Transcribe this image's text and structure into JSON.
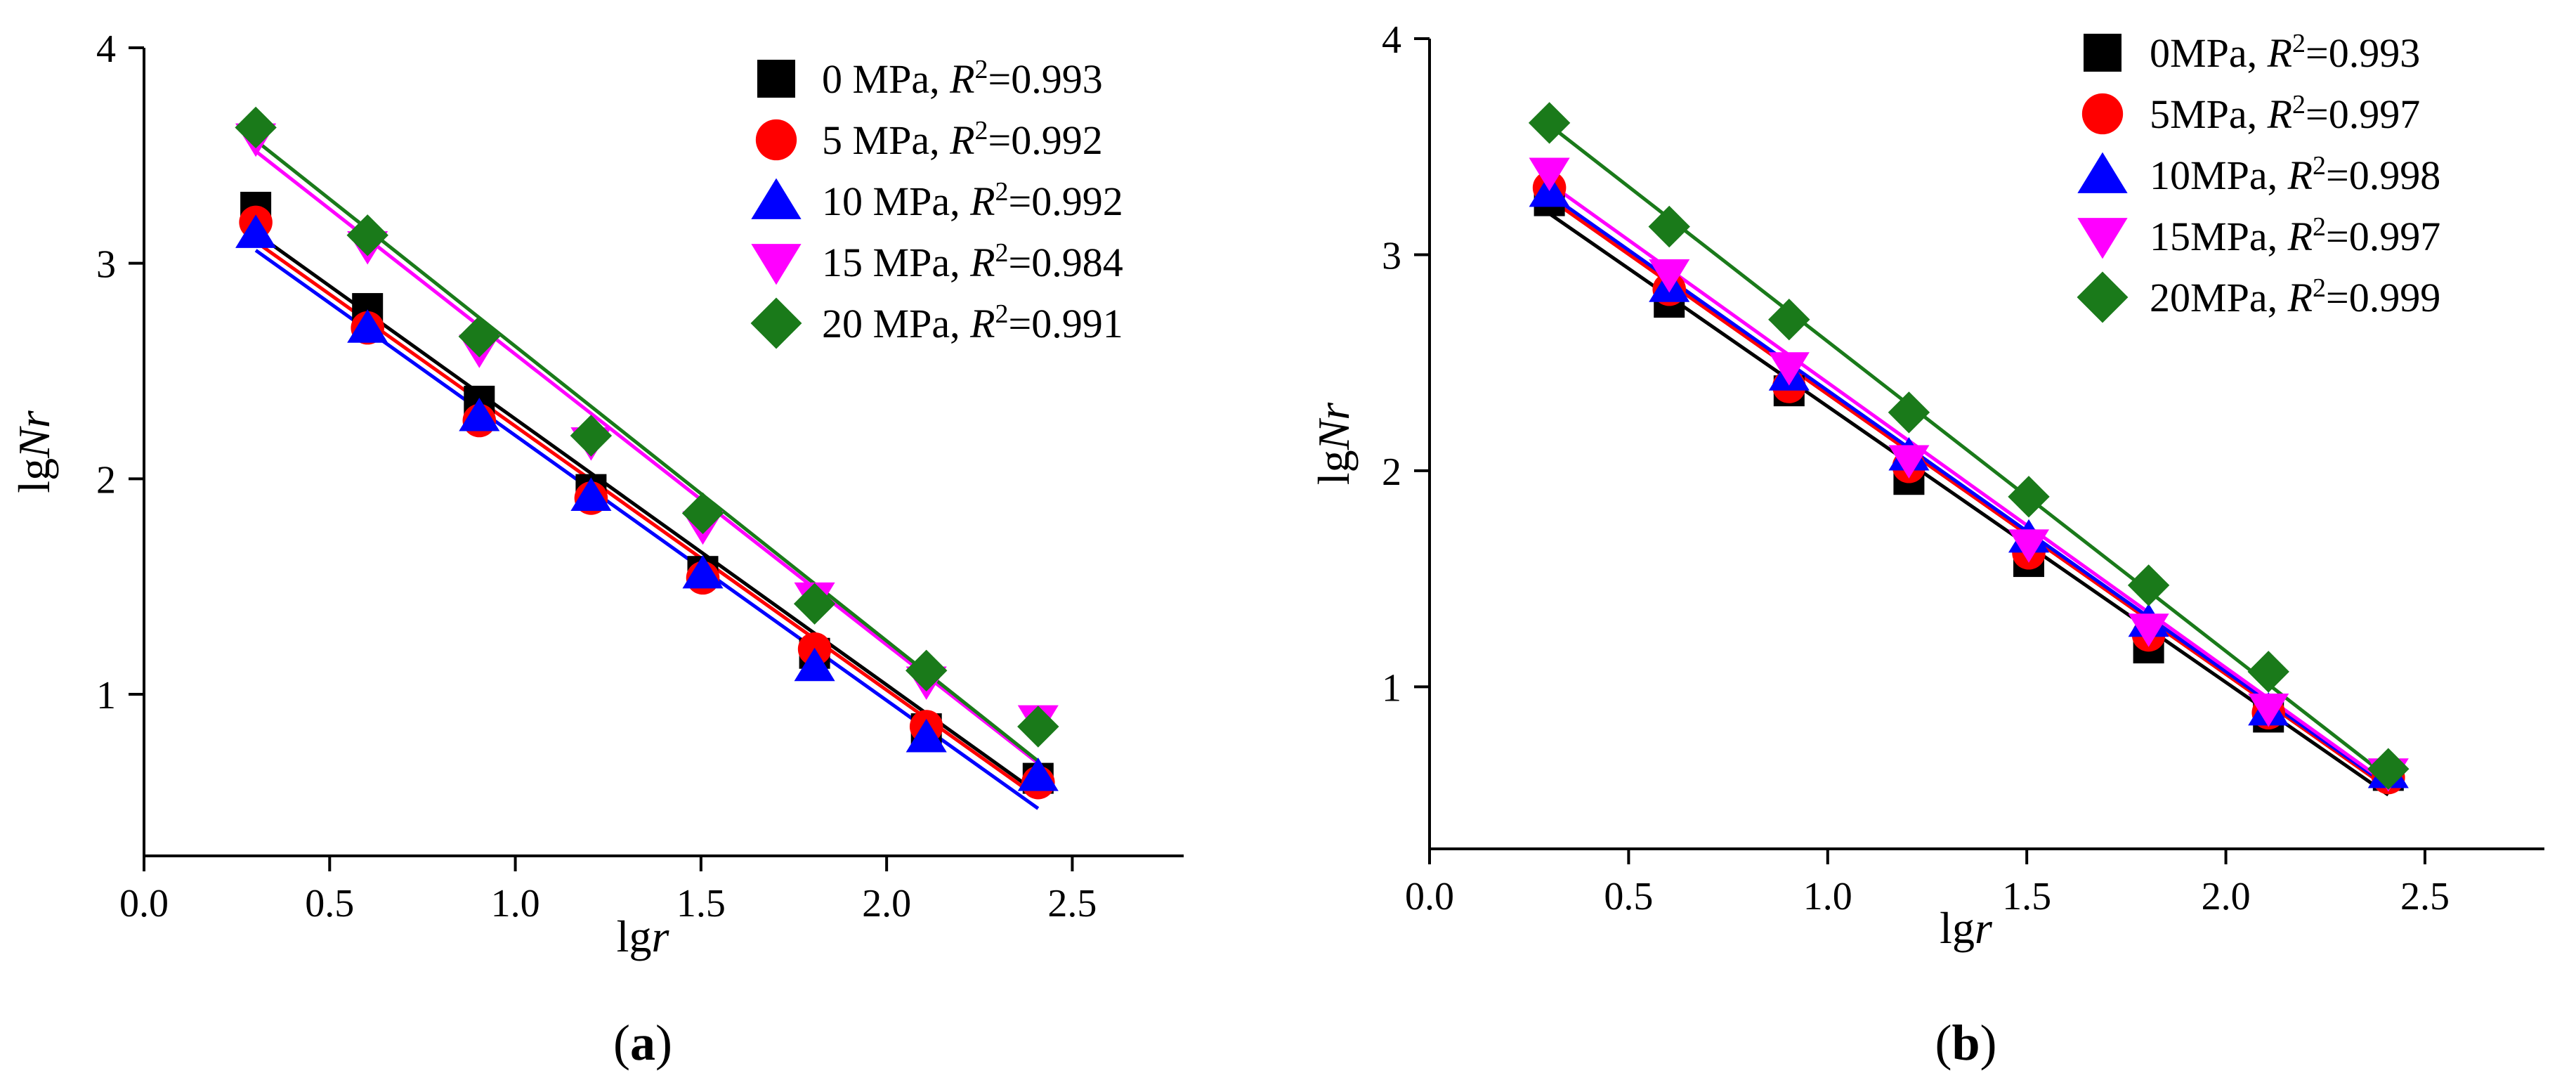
{
  "figure": {
    "panels": [
      "a",
      "b"
    ]
  },
  "chart_data": [
    {
      "id": "a",
      "type": "scatter",
      "panel_label": "a",
      "xlabel": {
        "prefix": "lg",
        "italic": "r"
      },
      "ylabel": {
        "prefix": "lg",
        "italic": "Nr"
      },
      "xlim": [
        0,
        2.8
      ],
      "ylim": [
        0.25,
        4
      ],
      "xticks": [
        0.0,
        0.5,
        1.0,
        1.5,
        2.0,
        2.5
      ],
      "xtick_labels": [
        "0.0",
        "0.5",
        "1.0",
        "1.5",
        "2.0",
        "2.5"
      ],
      "yticks": [
        1,
        2,
        3,
        4
      ],
      "ytick_labels": [
        "1",
        "2",
        "3",
        "4"
      ],
      "legend_position": "top-right",
      "x": [
        0.301,
        0.602,
        0.903,
        1.204,
        1.505,
        1.806,
        2.107,
        2.408
      ],
      "series": [
        {
          "name": "0 MPa",
          "prefix": "0 MPa, ",
          "r2": "=0.993",
          "marker": "square",
          "color": "#000000",
          "values": [
            3.26,
            2.79,
            2.36,
            1.95,
            1.57,
            1.19,
            0.84,
            0.61
          ],
          "fit": [
            3.14,
            0.54
          ]
        },
        {
          "name": "5 MPa",
          "prefix": "5 MPa, ",
          "r2": "=0.992",
          "marker": "circle",
          "color": "#ff0000",
          "values": [
            3.19,
            2.7,
            2.27,
            1.91,
            1.54,
            1.21,
            0.85,
            0.59
          ],
          "fit": [
            3.1,
            0.52
          ]
        },
        {
          "name": "10 MPa",
          "prefix": "10 MPa, ",
          "r2": "=0.992",
          "marker": "triangle-up",
          "color": "#0000ff",
          "values": [
            3.14,
            2.7,
            2.29,
            1.92,
            1.56,
            1.13,
            0.8,
            0.62
          ],
          "fit": [
            3.06,
            0.47
          ]
        },
        {
          "name": "15 MPa",
          "prefix": "15 MPa, ",
          "r2": "=0.984",
          "marker": "triangle-down",
          "color": "#ff00ff",
          "values": [
            3.58,
            3.08,
            2.6,
            2.17,
            1.78,
            1.45,
            1.06,
            0.88
          ],
          "fit": [
            3.52,
            0.68
          ]
        },
        {
          "name": "20 MPa",
          "prefix": "20 MPa, ",
          "r2": "=0.991",
          "marker": "diamond",
          "color": "#1a7a1a",
          "values": [
            3.63,
            3.13,
            2.66,
            2.2,
            1.84,
            1.42,
            1.11,
            0.85
          ],
          "fit": [
            3.57,
            0.69
          ]
        }
      ]
    },
    {
      "id": "b",
      "type": "scatter",
      "panel_label": "b",
      "xlabel": {
        "prefix": "lg",
        "italic": "r"
      },
      "ylabel": {
        "prefix": "lg",
        "italic": "Nr"
      },
      "xlim": [
        0,
        2.8
      ],
      "ylim": [
        0.25,
        4
      ],
      "xticks": [
        0.0,
        0.5,
        1.0,
        1.5,
        2.0,
        2.5
      ],
      "xtick_labels": [
        "0.0",
        "0.5",
        "1.0",
        "1.5",
        "2.0",
        "2.5"
      ],
      "yticks": [
        1,
        2,
        3,
        4
      ],
      "ytick_labels": [
        "1",
        "2",
        "3",
        "4"
      ],
      "legend_position": "top-right",
      "x": [
        0.301,
        0.602,
        0.903,
        1.204,
        1.505,
        1.806,
        2.107,
        2.408
      ],
      "series": [
        {
          "name": "0MPa",
          "prefix": "0MPa, ",
          "r2": "=0.993",
          "marker": "square",
          "color": "#000000",
          "values": [
            3.25,
            2.78,
            2.37,
            1.96,
            1.58,
            1.18,
            0.86,
            0.59
          ],
          "fit": [
            3.19,
            0.5
          ]
        },
        {
          "name": "5MPa",
          "prefix": "5MPa, ",
          "r2": "=0.997",
          "marker": "circle",
          "color": "#ff0000",
          "values": [
            3.31,
            2.84,
            2.39,
            2.02,
            1.62,
            1.24,
            0.88,
            0.58
          ],
          "fit": [
            3.26,
            0.53
          ]
        },
        {
          "name": "10MPa",
          "prefix": "10MPa, ",
          "r2": "=0.998",
          "marker": "triangle-up",
          "color": "#0000ff",
          "values": [
            3.29,
            2.85,
            2.44,
            2.07,
            1.69,
            1.3,
            0.89,
            0.6
          ],
          "fit": [
            3.28,
            0.54
          ]
        },
        {
          "name": "15MPa",
          "prefix": "15MPa, ",
          "r2": "=0.997",
          "marker": "triangle-down",
          "color": "#ff00ff",
          "values": [
            3.38,
            2.91,
            2.48,
            2.05,
            1.66,
            1.27,
            0.9,
            0.6
          ],
          "fit": [
            3.33,
            0.55
          ]
        },
        {
          "name": "20MPa",
          "prefix": "20MPa, ",
          "r2": "=0.999",
          "marker": "diamond",
          "color": "#1a7a1a",
          "values": [
            3.61,
            3.13,
            2.7,
            2.27,
            1.88,
            1.47,
            1.07,
            0.62
          ],
          "fit": [
            3.6,
            0.58
          ]
        }
      ]
    }
  ]
}
